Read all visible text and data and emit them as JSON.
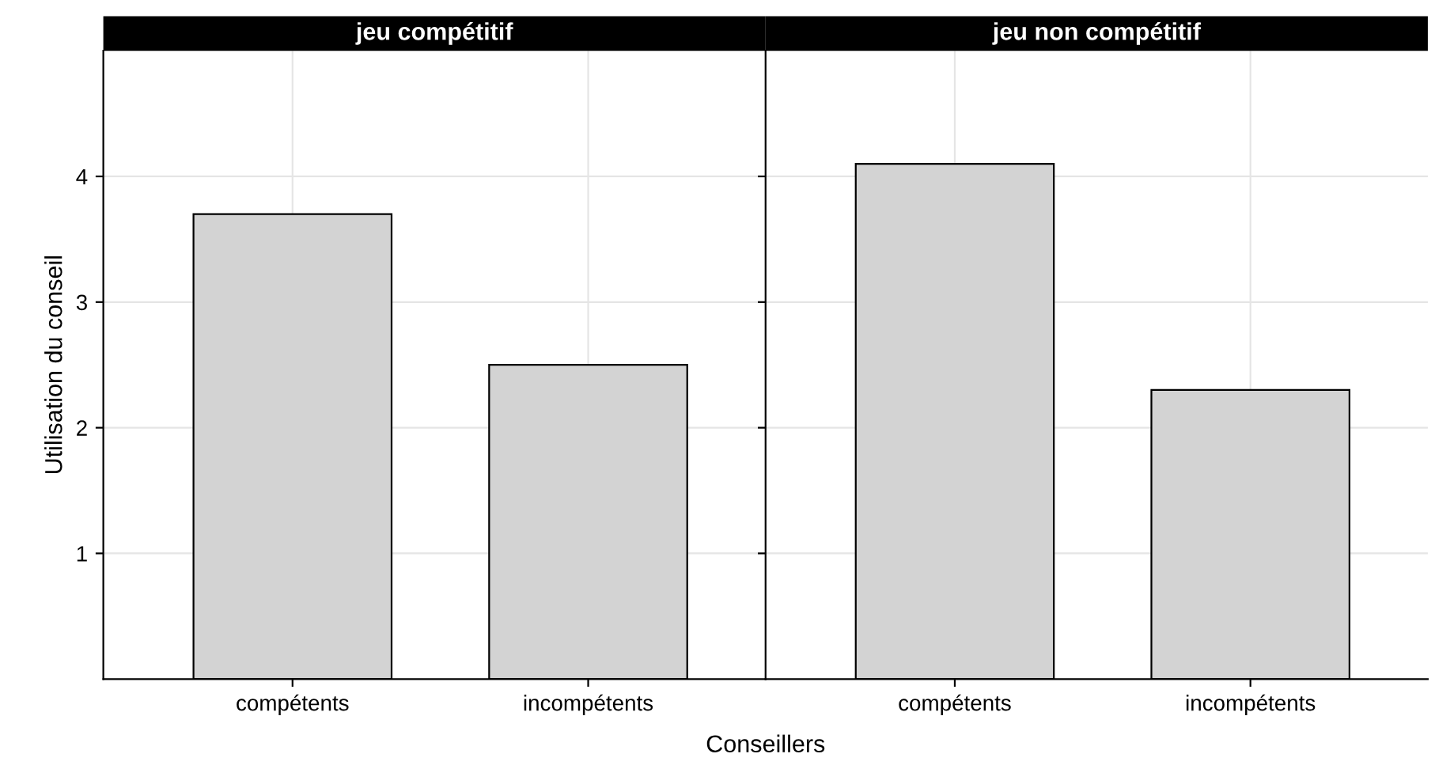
{
  "chart_data": [
    {
      "type": "bar",
      "title": "jeu compétitif",
      "xlabel": "Conseillers",
      "ylabel": "Utilisation du conseil",
      "categories": [
        "compétents",
        "incompétents"
      ],
      "values": [
        3.7,
        2.5
      ],
      "color": "#d3d3d3",
      "ylim": [
        0,
        5
      ],
      "yticks": [
        1,
        2,
        3,
        4
      ],
      "grid": true
    },
    {
      "type": "bar",
      "title": "jeu non compétitif",
      "categories": [
        "compétents",
        "incompétents"
      ],
      "values": [
        4.1,
        2.3
      ],
      "color": "#d3d3d3",
      "ylim": [
        0,
        5
      ],
      "yticks": [
        1,
        2,
        3,
        4
      ],
      "grid": true,
      "tick_labels": "x"
    }
  ]
}
